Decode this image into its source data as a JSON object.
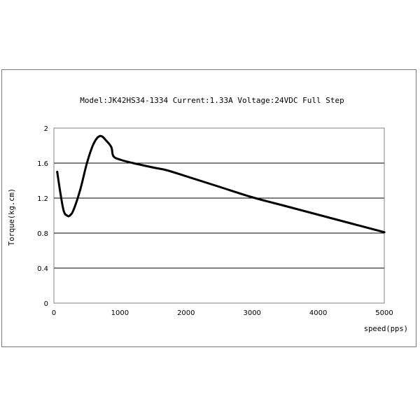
{
  "chart_data": {
    "type": "line",
    "title": "Model:JK42HS34-1334 Current:1.33A Voltage:24VDC Full Step",
    "xlabel": "speed(pps)",
    "ylabel": "Torque(kg.cm)",
    "xlim": [
      0,
      5000
    ],
    "ylim": [
      0,
      2
    ],
    "xticks": [
      "0",
      "1000",
      "2000",
      "3000",
      "4000",
      "5000"
    ],
    "yticks": [
      "0",
      "0.4",
      "0.8",
      "1.2",
      "1.6",
      "2"
    ],
    "grid": "horizontal",
    "legend": "none",
    "series": [
      {
        "color": "#000000",
        "x": [
          50,
          100,
          150,
          200,
          240,
          300,
          400,
          500,
          600,
          700,
          800,
          870,
          900,
          1000,
          1200,
          1500,
          1700,
          2000,
          2500,
          3000,
          3500,
          4000,
          4500,
          5000
        ],
        "y": [
          1.5,
          1.25,
          1.05,
          1.0,
          1.0,
          1.07,
          1.3,
          1.6,
          1.82,
          1.91,
          1.85,
          1.78,
          1.68,
          1.64,
          1.6,
          1.55,
          1.52,
          1.45,
          1.33,
          1.21,
          1.11,
          1.01,
          0.91,
          0.81
        ]
      }
    ]
  }
}
